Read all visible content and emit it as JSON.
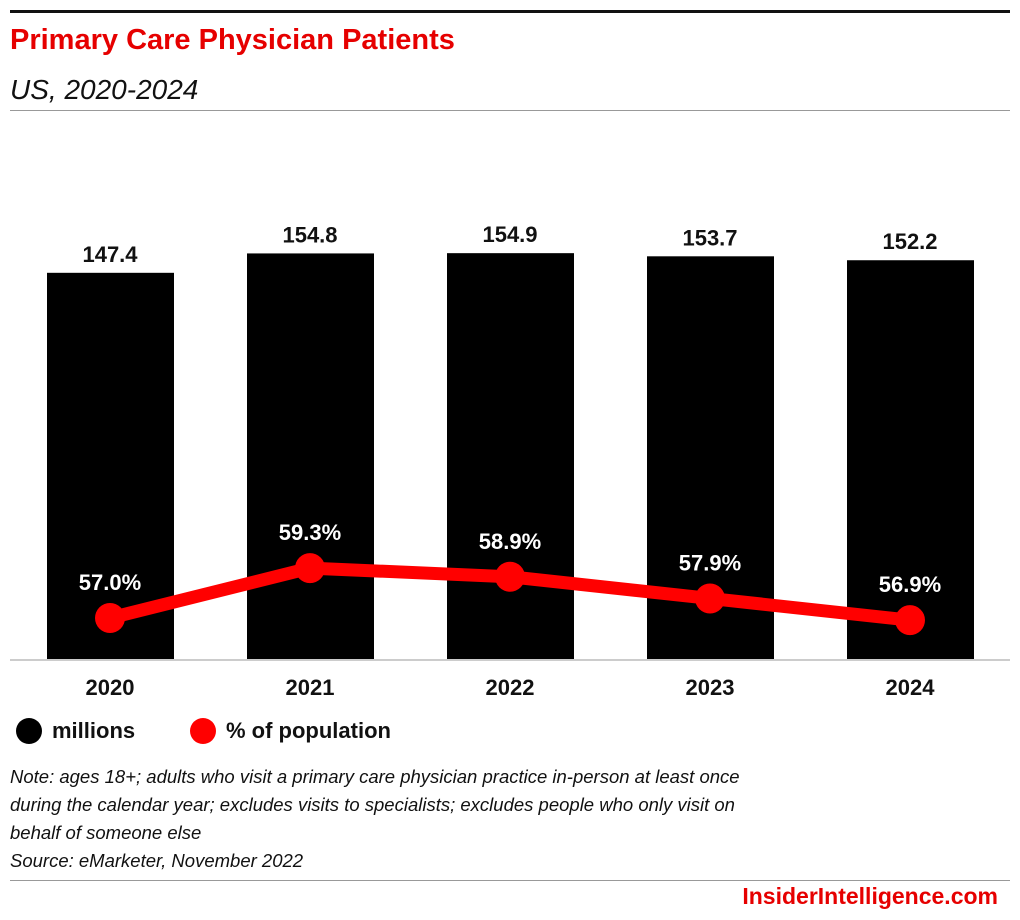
{
  "title": "Primary Care Physician Patients",
  "subtitle": "US, 2020-2024",
  "chart_data": {
    "type": "bar",
    "title": "Primary Care Physician Patients",
    "subtitle": "US, 2020-2024",
    "categories": [
      "2020",
      "2021",
      "2022",
      "2023",
      "2024"
    ],
    "series": [
      {
        "name": "millions",
        "type": "bar",
        "color": "#000000",
        "values": [
          147.4,
          154.8,
          154.9,
          153.7,
          152.2
        ],
        "labels": [
          "147.4",
          "154.8",
          "154.9",
          "153.7",
          "152.2"
        ]
      },
      {
        "name": "% of population",
        "type": "line",
        "color": "#ff0000",
        "values": [
          57.0,
          59.3,
          58.9,
          57.9,
          56.9
        ],
        "labels": [
          "57.0%",
          "59.3%",
          "58.9%",
          "57.9%",
          "56.9%"
        ]
      }
    ],
    "grid": false,
    "legend": "bottom-left"
  },
  "legend": [
    "millions",
    "% of population"
  ],
  "note": [
    "Note: ages 18+; adults who visit a primary care physician practice in-person at least once",
    "during the calendar year; excludes visits to specialists; excludes people who only visit on",
    "behalf of someone else",
    "Source: eMarketer, November 2022"
  ],
  "logo": "InsiderIntelligence.com"
}
